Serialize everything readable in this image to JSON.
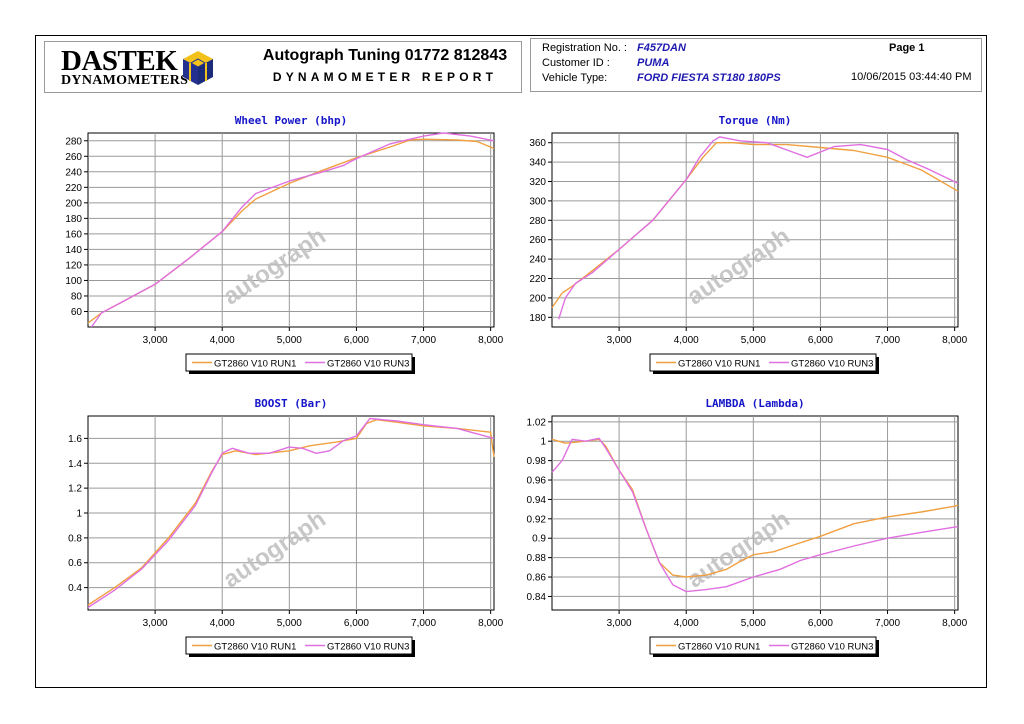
{
  "header": {
    "brand_line1": "DASTEK",
    "brand_line2": "DYNAMOMETERS",
    "report_title": "Autograph Tuning 01772 812843",
    "report_subtitle": "DYNAMOMETER REPORT",
    "registration_label": "Registration No. :",
    "registration_value": "F457DAN",
    "customer_label": "Customer ID :",
    "customer_value": "PUMA",
    "vehicle_label": "Vehicle Type:",
    "vehicle_value": "FORD FIESTA ST180 180PS",
    "page_label": "Page 1",
    "datetime": "10/06/2015 03:44:40 PM"
  },
  "watermark": "autograph",
  "colors": {
    "run1": "#f0a040",
    "run3": "#e070e0",
    "title": "#1414c8",
    "grid": "#9a9a9a"
  },
  "chart_data": [
    {
      "id": "power",
      "type": "line",
      "title": "Wheel Power (bhp)",
      "xlim": [
        2000,
        8050
      ],
      "ylim": [
        40,
        290
      ],
      "xticks": [
        3000,
        4000,
        5000,
        6000,
        7000,
        8000
      ],
      "xtick_labels": [
        "3,000",
        "4,000",
        "5,000",
        "6,000",
        "7,000",
        "8,000"
      ],
      "yticks": [
        60,
        80,
        100,
        120,
        140,
        160,
        180,
        200,
        220,
        240,
        260,
        280
      ],
      "ytick_labels": [
        "60",
        "80",
        "100",
        "120",
        "140",
        "160",
        "180",
        "200",
        "220",
        "240",
        "260",
        "280"
      ],
      "legend": [
        "GT2860 V10 RUN1",
        "GT2860 V10 RUN3"
      ],
      "series": [
        {
          "name": "GT2860 V10 RUN1",
          "points": [
            [
              2000,
              45
            ],
            [
              2200,
              58
            ],
            [
              2500,
              72
            ],
            [
              3000,
              95
            ],
            [
              3500,
              128
            ],
            [
              4000,
              163
            ],
            [
              4300,
              190
            ],
            [
              4500,
              205
            ],
            [
              5000,
              225
            ],
            [
              5500,
              242
            ],
            [
              6000,
              258
            ],
            [
              6500,
              272
            ],
            [
              6800,
              281
            ],
            [
              7000,
              282
            ],
            [
              7500,
              281
            ],
            [
              7800,
              279
            ],
            [
              8050,
              270
            ]
          ]
        },
        {
          "name": "GT2860 V10 RUN3",
          "points": [
            [
              2050,
              40
            ],
            [
              2200,
              58
            ],
            [
              2500,
              72
            ],
            [
              3000,
              95
            ],
            [
              3500,
              128
            ],
            [
              4000,
              163
            ],
            [
              4300,
              195
            ],
            [
              4500,
              212
            ],
            [
              5000,
              228
            ],
            [
              5500,
              240
            ],
            [
              5800,
              248
            ],
            [
              6000,
              257
            ],
            [
              6500,
              276
            ],
            [
              7000,
              286
            ],
            [
              7300,
              290
            ],
            [
              7700,
              286
            ],
            [
              8050,
              280
            ]
          ]
        }
      ]
    },
    {
      "id": "torque",
      "type": "line",
      "title": "Torque (Nm)",
      "xlim": [
        2000,
        8050
      ],
      "ylim": [
        170,
        370
      ],
      "xticks": [
        3000,
        4000,
        5000,
        6000,
        7000,
        8000
      ],
      "xtick_labels": [
        "3,000",
        "4,000",
        "5,000",
        "6,000",
        "7,000",
        "8,000"
      ],
      "yticks": [
        180,
        200,
        220,
        240,
        260,
        280,
        300,
        320,
        340,
        360
      ],
      "ytick_labels": [
        "180",
        "200",
        "220",
        "240",
        "260",
        "280",
        "300",
        "320",
        "340",
        "360"
      ],
      "legend": [
        "GT2860 V10 RUN1",
        "GT2860 V10 RUN3"
      ],
      "series": [
        {
          "name": "GT2860 V10 RUN1",
          "points": [
            [
              2000,
              190
            ],
            [
              2150,
              205
            ],
            [
              2300,
              212
            ],
            [
              2600,
              228
            ],
            [
              3000,
              250
            ],
            [
              3500,
              280
            ],
            [
              4000,
              322
            ],
            [
              4250,
              345
            ],
            [
              4450,
              360
            ],
            [
              4700,
              360
            ],
            [
              5000,
              358
            ],
            [
              5500,
              358
            ],
            [
              6000,
              355
            ],
            [
              6500,
              352
            ],
            [
              7000,
              345
            ],
            [
              7500,
              332
            ],
            [
              8050,
              310
            ]
          ]
        },
        {
          "name": "GT2860 V10 RUN3",
          "points": [
            [
              2100,
              178
            ],
            [
              2200,
              200
            ],
            [
              2350,
              215
            ],
            [
              2600,
              226
            ],
            [
              3000,
              250
            ],
            [
              3500,
              280
            ],
            [
              4000,
              322
            ],
            [
              4200,
              345
            ],
            [
              4400,
              362
            ],
            [
              4500,
              366
            ],
            [
              4800,
              362
            ],
            [
              5200,
              360
            ],
            [
              5600,
              350
            ],
            [
              5800,
              345
            ],
            [
              6200,
              356
            ],
            [
              6600,
              358
            ],
            [
              7000,
              353
            ],
            [
              7300,
              342
            ],
            [
              7600,
              333
            ],
            [
              8050,
              318
            ]
          ]
        }
      ]
    },
    {
      "id": "boost",
      "type": "line",
      "title": "BOOST (Bar)",
      "xlim": [
        2000,
        8050
      ],
      "ylim": [
        0.22,
        1.78
      ],
      "xticks": [
        3000,
        4000,
        5000,
        6000,
        7000,
        8000
      ],
      "xtick_labels": [
        "3,000",
        "4,000",
        "5,000",
        "6,000",
        "7,000",
        "8,000"
      ],
      "yticks": [
        0.4,
        0.6,
        0.8,
        1,
        1.2,
        1.4,
        1.6
      ],
      "ytick_labels": [
        "0.4",
        "0.6",
        "0.8",
        "1",
        "1.2",
        "1.4",
        "1.6"
      ],
      "legend": [
        "GT2860 V10 RUN1",
        "GT2860 V10 RUN3"
      ],
      "series": [
        {
          "name": "GT2860 V10 RUN1",
          "points": [
            [
              2000,
              0.26
            ],
            [
              2400,
              0.4
            ],
            [
              2800,
              0.56
            ],
            [
              3200,
              0.8
            ],
            [
              3600,
              1.08
            ],
            [
              3850,
              1.34
            ],
            [
              4000,
              1.47
            ],
            [
              4200,
              1.5
            ],
            [
              4500,
              1.47
            ],
            [
              5000,
              1.5
            ],
            [
              5300,
              1.54
            ],
            [
              5700,
              1.57
            ],
            [
              6000,
              1.6
            ],
            [
              6150,
              1.72
            ],
            [
              6300,
              1.75
            ],
            [
              6600,
              1.73
            ],
            [
              7000,
              1.7
            ],
            [
              7500,
              1.68
            ],
            [
              8000,
              1.65
            ],
            [
              8050,
              1.45
            ]
          ]
        },
        {
          "name": "GT2860 V10 RUN3",
          "points": [
            [
              2000,
              0.24
            ],
            [
              2400,
              0.38
            ],
            [
              2800,
              0.55
            ],
            [
              3200,
              0.78
            ],
            [
              3600,
              1.06
            ],
            [
              3850,
              1.33
            ],
            [
              4000,
              1.48
            ],
            [
              4150,
              1.52
            ],
            [
              4400,
              1.48
            ],
            [
              4700,
              1.48
            ],
            [
              5000,
              1.53
            ],
            [
              5200,
              1.52
            ],
            [
              5400,
              1.48
            ],
            [
              5600,
              1.5
            ],
            [
              5800,
              1.58
            ],
            [
              6000,
              1.62
            ],
            [
              6200,
              1.76
            ],
            [
              6600,
              1.74
            ],
            [
              7000,
              1.71
            ],
            [
              7500,
              1.68
            ],
            [
              8050,
              1.6
            ]
          ]
        }
      ]
    },
    {
      "id": "lambda",
      "type": "line",
      "title": "LAMBDA (Lambda)",
      "xlim": [
        2000,
        8050
      ],
      "ylim": [
        0.826,
        1.026
      ],
      "xticks": [
        3000,
        4000,
        5000,
        6000,
        7000,
        8000
      ],
      "xtick_labels": [
        "3,000",
        "4,000",
        "5,000",
        "6,000",
        "7,000",
        "8,000"
      ],
      "yticks": [
        0.84,
        0.86,
        0.88,
        0.9,
        0.92,
        0.94,
        0.96,
        0.98,
        1,
        1.02
      ],
      "ytick_labels": [
        "0.84",
        "0.86",
        "0.88",
        "0.9",
        "0.92",
        "0.94",
        "0.96",
        "0.98",
        "1",
        "1.02"
      ],
      "legend": [
        "GT2860 V10 RUN1",
        "GT2860 V10 RUN3"
      ],
      "series": [
        {
          "name": "GT2860 V10 RUN1",
          "points": [
            [
              2000,
              1.002
            ],
            [
              2200,
              0.998
            ],
            [
              2500,
              1.0
            ],
            [
              2700,
              1.002
            ],
            [
              2800,
              0.995
            ],
            [
              3000,
              0.97
            ],
            [
              3200,
              0.95
            ],
            [
              3400,
              0.91
            ],
            [
              3600,
              0.875
            ],
            [
              3800,
              0.862
            ],
            [
              4000,
              0.86
            ],
            [
              4300,
              0.862
            ],
            [
              4600,
              0.868
            ],
            [
              4800,
              0.876
            ],
            [
              5000,
              0.883
            ],
            [
              5300,
              0.886
            ],
            [
              5600,
              0.893
            ],
            [
              6000,
              0.902
            ],
            [
              6500,
              0.915
            ],
            [
              7000,
              0.922
            ],
            [
              7500,
              0.927
            ],
            [
              8000,
              0.933
            ],
            [
              8050,
              0.934
            ]
          ]
        },
        {
          "name": "GT2860 V10 RUN3",
          "points": [
            [
              2000,
              0.968
            ],
            [
              2150,
              0.98
            ],
            [
              2300,
              1.002
            ],
            [
              2500,
              1.0
            ],
            [
              2700,
              1.003
            ],
            [
              2800,
              0.993
            ],
            [
              3000,
              0.97
            ],
            [
              3200,
              0.948
            ],
            [
              3400,
              0.91
            ],
            [
              3600,
              0.875
            ],
            [
              3800,
              0.852
            ],
            [
              4000,
              0.845
            ],
            [
              4300,
              0.847
            ],
            [
              4600,
              0.85
            ],
            [
              5000,
              0.86
            ],
            [
              5400,
              0.868
            ],
            [
              5700,
              0.877
            ],
            [
              6000,
              0.883
            ],
            [
              6500,
              0.892
            ],
            [
              7000,
              0.9
            ],
            [
              7500,
              0.906
            ],
            [
              8050,
              0.912
            ]
          ]
        }
      ]
    }
  ]
}
